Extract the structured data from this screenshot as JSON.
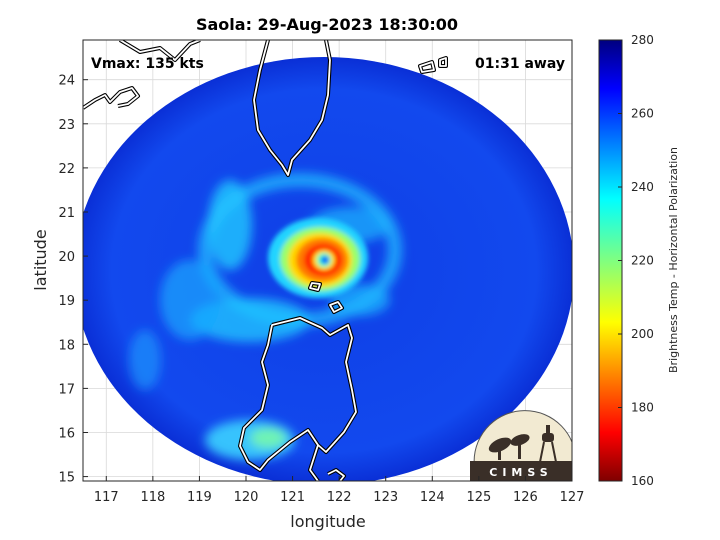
{
  "chart_data": {
    "type": "heatmap",
    "title": "Saola: 29-Aug-2023 18:30:00",
    "xlabel": "longitude",
    "ylabel": "latitude",
    "xlim": [
      116.5,
      127
    ],
    "ylim": [
      14.9,
      24.9
    ],
    "x_ticks": [
      117,
      118,
      119,
      120,
      121,
      122,
      123,
      124,
      125,
      126,
      127
    ],
    "y_ticks": [
      15,
      16,
      17,
      18,
      19,
      20,
      21,
      22,
      23,
      24
    ],
    "grid": true,
    "annotations": {
      "vmax": "Vmax: 135 kts",
      "time_away": "01:31 away"
    },
    "storm_center": {
      "lon": 121.6,
      "lat": 19.9
    },
    "swath_center": {
      "lon": 121.8,
      "lat": 19.8
    },
    "colorbar": {
      "label": "Brightness Temp - Horizontal Polarization",
      "min": 160,
      "max": 280,
      "ticks": [
        160,
        180,
        200,
        220,
        240,
        260,
        280
      ],
      "colormap": "jet"
    },
    "logo_text": "CIMSS"
  }
}
